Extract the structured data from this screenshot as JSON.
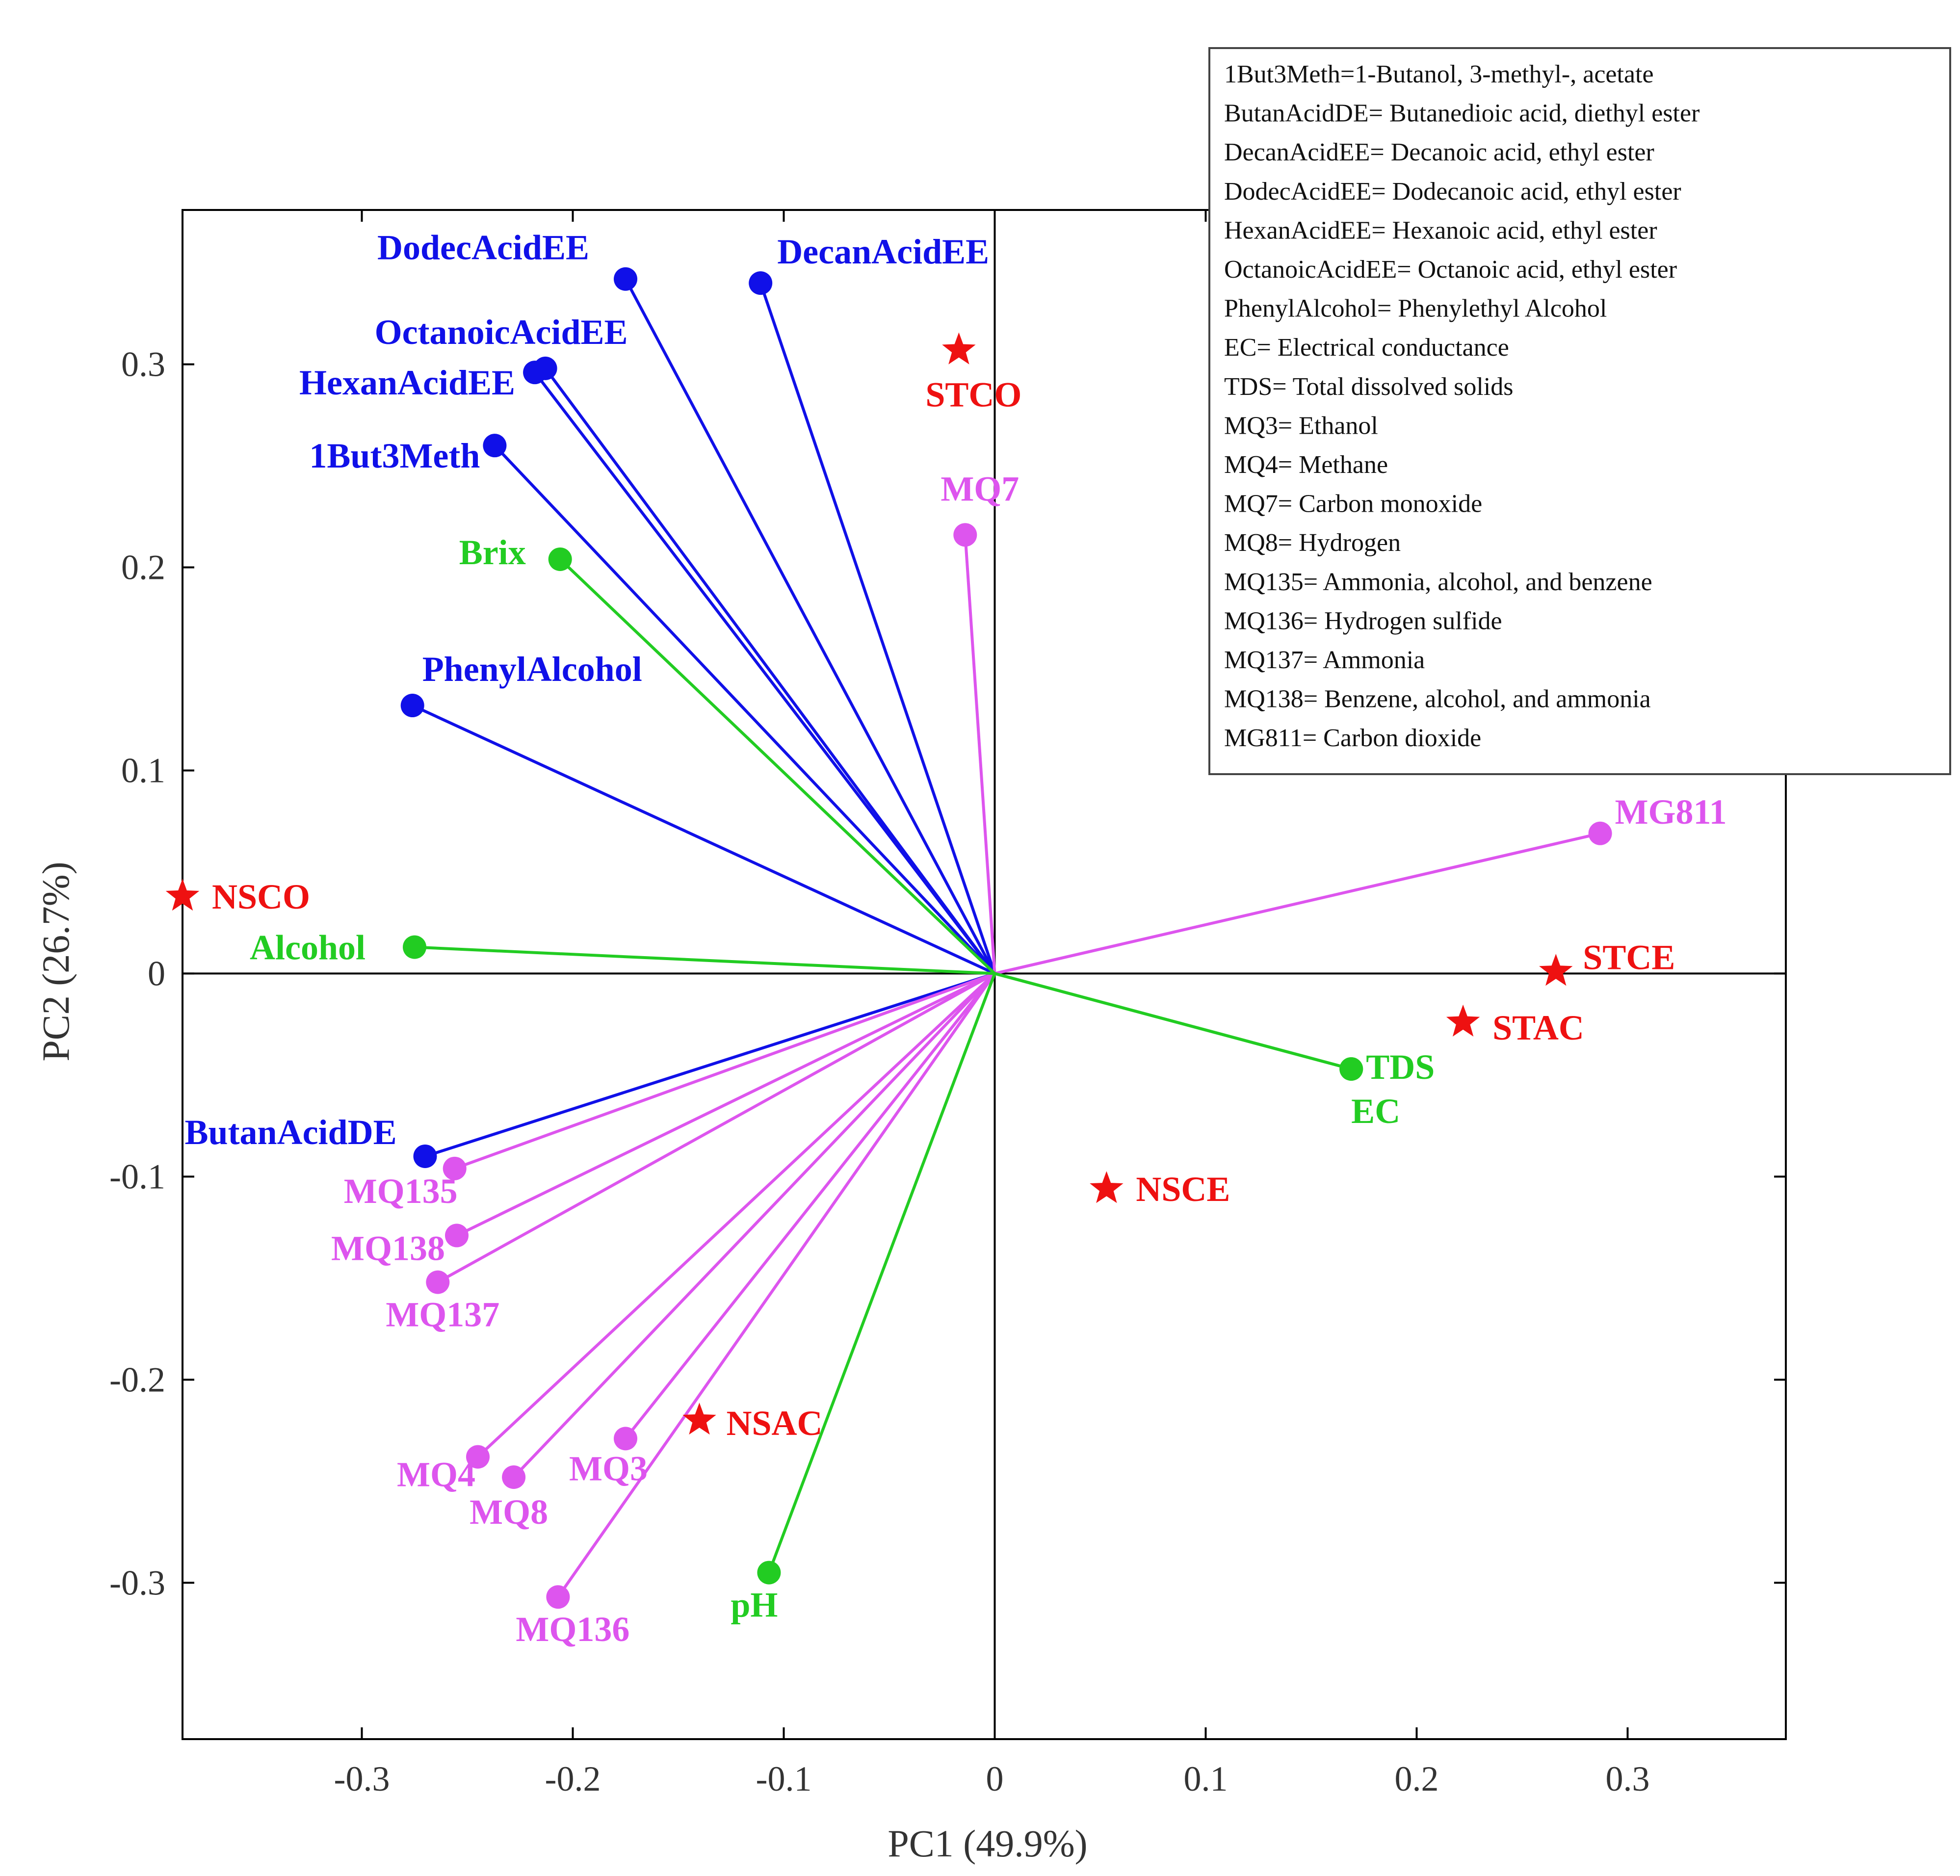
{
  "chart_data": {
    "type": "scatter",
    "subtype": "pca-biplot",
    "xlabel": "PC1 (49.9%)",
    "ylabel": "PC2 (26.7%)",
    "xlim": [
      -0.385,
      0.375
    ],
    "ylim": [
      -0.377,
      0.376
    ],
    "xticks": [
      -0.3,
      -0.2,
      -0.1,
      0,
      0.1,
      0.2,
      0.3
    ],
    "yticks": [
      -0.3,
      -0.2,
      -0.1,
      0,
      0.1,
      0.2,
      0.3
    ],
    "xtick_labels": [
      "-0.3",
      "-0.2",
      "-0.1",
      "0",
      "0.1",
      "0.2",
      "0.3"
    ],
    "ytick_labels": [
      "-0.3",
      "-0.2",
      "-0.1",
      "0",
      "0.1",
      "0.2",
      "0.3"
    ],
    "colors": {
      "volatiles": "#1010e8",
      "sensors": "#dd55ee",
      "physicochemical": "#22cc22",
      "samples": "#ee1111"
    },
    "loadings": [
      {
        "name": "DodecAcidEE",
        "group": "volatiles",
        "x": -0.175,
        "y": 0.342
      },
      {
        "name": "DecanAcidEE",
        "group": "volatiles",
        "x": -0.111,
        "y": 0.34
      },
      {
        "name": "OctanoicAcidEE",
        "group": "volatiles",
        "x": -0.213,
        "y": 0.298
      },
      {
        "name": "HexanAcidEE",
        "group": "volatiles",
        "x": -0.218,
        "y": 0.296
      },
      {
        "name": "1But3Meth",
        "group": "volatiles",
        "x": -0.237,
        "y": 0.26
      },
      {
        "name": "PhenylAlcohol",
        "group": "volatiles",
        "x": -0.276,
        "y": 0.132
      },
      {
        "name": "ButanAcidDE",
        "group": "volatiles",
        "x": -0.27,
        "y": -0.09
      },
      {
        "name": "MQ7",
        "group": "sensors",
        "x": -0.014,
        "y": 0.216
      },
      {
        "name": "MG811",
        "group": "sensors",
        "x": 0.287,
        "y": 0.069
      },
      {
        "name": "MQ135",
        "group": "sensors",
        "x": -0.256,
        "y": -0.096
      },
      {
        "name": "MQ138",
        "group": "sensors",
        "x": -0.255,
        "y": -0.129
      },
      {
        "name": "MQ137",
        "group": "sensors",
        "x": -0.264,
        "y": -0.152
      },
      {
        "name": "MQ4",
        "group": "sensors",
        "x": -0.245,
        "y": -0.238
      },
      {
        "name": "MQ8",
        "group": "sensors",
        "x": -0.228,
        "y": -0.248
      },
      {
        "name": "MQ3",
        "group": "sensors",
        "x": -0.175,
        "y": -0.229
      },
      {
        "name": "MQ136",
        "group": "sensors",
        "x": -0.207,
        "y": -0.307
      },
      {
        "name": "Brix",
        "group": "physicochemical",
        "x": -0.206,
        "y": 0.204
      },
      {
        "name": "Alcohol",
        "group": "physicochemical",
        "x": -0.275,
        "y": 0.013
      },
      {
        "name": "TDS",
        "group": "physicochemical",
        "x": 0.169,
        "y": -0.047
      },
      {
        "name": "EC",
        "group": "physicochemical",
        "x": 0.169,
        "y": -0.047
      },
      {
        "name": "pH",
        "group": "physicochemical",
        "x": -0.107,
        "y": -0.295
      }
    ],
    "samples": [
      {
        "name": "STCO",
        "x": -0.017,
        "y": 0.307
      },
      {
        "name": "NSCO",
        "x": -0.385,
        "y": 0.038
      },
      {
        "name": "STCE",
        "x": 0.266,
        "y": 0.001
      },
      {
        "name": "STAC",
        "x": 0.222,
        "y": -0.024
      },
      {
        "name": "NSCE",
        "x": 0.053,
        "y": -0.106
      },
      {
        "name": "NSAC",
        "x": -0.14,
        "y": -0.22
      }
    ],
    "legend_position": "top-right",
    "legend": [
      "1But3Meth=1-Butanol, 3-methyl-, acetate",
      "ButanAcidDE= Butanedioic acid, diethyl ester",
      "DecanAcidEE= Decanoic acid, ethyl ester",
      "DodecAcidEE= Dodecanoic acid, ethyl ester",
      "HexanAcidEE= Hexanoic acid, ethyl ester",
      "OctanoicAcidEE= Octanoic acid, ethyl ester",
      "PhenylAlcohol= Phenylethyl Alcohol",
      "EC= Electrical conductance",
      "TDS= Total dissolved solids",
      "MQ3= Ethanol",
      "MQ4= Methane",
      "MQ7= Carbon monoxide",
      "MQ8= Hydrogen",
      "MQ135= Ammonia, alcohol, and benzene",
      "MQ136= Hydrogen sulfide",
      "MQ137= Ammonia",
      "MQ138= Benzene, alcohol, and ammonia",
      "MG811= Carbon dioxide"
    ]
  }
}
